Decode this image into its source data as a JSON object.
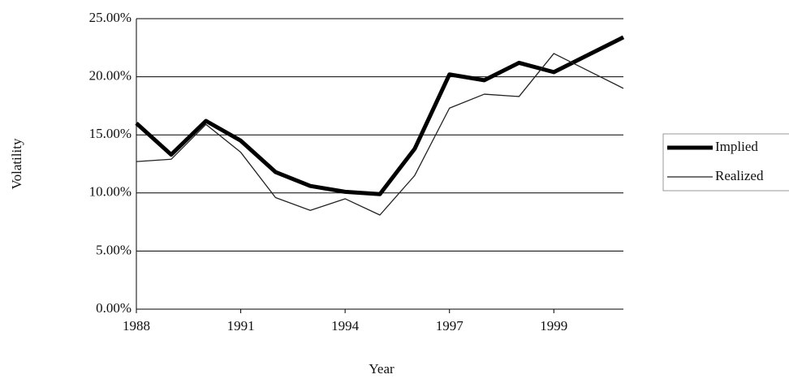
{
  "chart_data": {
    "type": "line",
    "y_label": "Volatility",
    "x_label": "Year",
    "categories": [
      "1988",
      null,
      null,
      "1991",
      null,
      null,
      "1994",
      null,
      null,
      "1997",
      null,
      null,
      "1999",
      null,
      null
    ],
    "series": [
      {
        "name": "Implied",
        "color": "#000000",
        "width": 5,
        "values": [
          16.0,
          13.3,
          16.2,
          14.5,
          11.8,
          10.6,
          10.1,
          9.9,
          13.8,
          20.2,
          19.7,
          21.2,
          20.4,
          21.9,
          23.4
        ]
      },
      {
        "name": "Realized",
        "color": "#222222",
        "width": 1.3,
        "values": [
          12.7,
          12.9,
          15.9,
          13.5,
          9.6,
          8.5,
          9.5,
          8.1,
          11.5,
          17.3,
          18.5,
          18.3,
          22.0,
          20.5,
          19.0
        ]
      }
    ],
    "ylim": [
      0,
      25
    ],
    "yticks": [
      {
        "value": 0,
        "label": "0.00%"
      },
      {
        "value": 5,
        "label": "5.00%"
      },
      {
        "value": 10,
        "label": "10.00%"
      },
      {
        "value": 15,
        "label": "15.00%"
      },
      {
        "value": 20,
        "label": "20.00%"
      },
      {
        "value": 25,
        "label": "25.00%"
      }
    ],
    "grid": true,
    "legend": "right"
  }
}
